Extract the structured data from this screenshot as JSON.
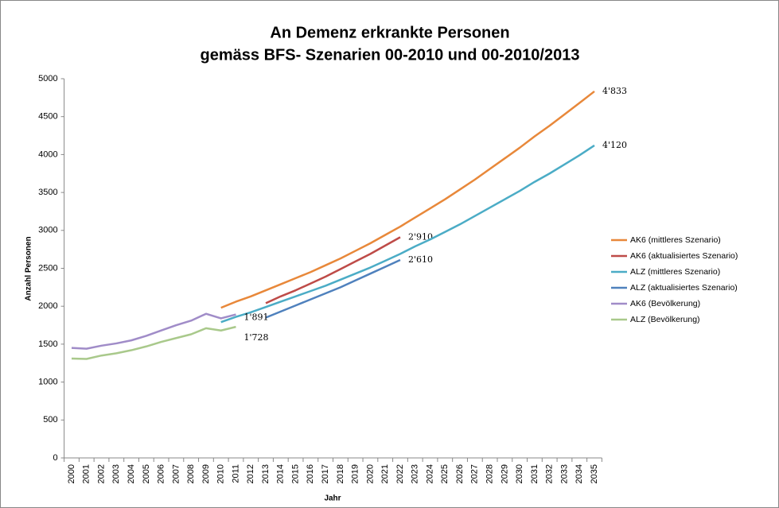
{
  "chart_data": {
    "type": "line",
    "title": "An Demenz erkrankte Personen",
    "subtitle": "gemäss BFS- Szenarien 00-2010 und 00-2010/2013",
    "x_label": "Jahr",
    "y_label": "Anzahl Personen",
    "categories": [
      "2000",
      "2001",
      "2002",
      "2003",
      "2004",
      "2005",
      "2006",
      "2007",
      "2008",
      "2009",
      "2010",
      "2011",
      "2012",
      "2013",
      "2014",
      "2015",
      "2016",
      "2017",
      "2018",
      "2019",
      "2020",
      "2021",
      "2022",
      "2023",
      "2024",
      "2025",
      "2026",
      "2027",
      "2028",
      "2029",
      "2030",
      "2031",
      "2032",
      "2033",
      "2034",
      "2035"
    ],
    "ylim": [
      0,
      5000
    ],
    "yticks": [
      0,
      500,
      1000,
      1500,
      2000,
      2500,
      3000,
      3500,
      4000,
      4500,
      5000
    ],
    "grid": false,
    "legend": "right",
    "series": [
      {
        "name": "AK6 (mittleres Szenario)",
        "color": "#e8883a",
        "values": [
          null,
          null,
          null,
          null,
          null,
          null,
          null,
          null,
          null,
          null,
          1980,
          2060,
          2130,
          2210,
          2290,
          2370,
          2450,
          2540,
          2630,
          2730,
          2830,
          2940,
          3050,
          3170,
          3290,
          3410,
          3540,
          3670,
          3810,
          3950,
          4090,
          4240,
          4380,
          4530,
          4680,
          4833
        ],
        "value_labels": [
          null,
          null,
          null,
          null,
          null,
          null,
          null,
          null,
          null,
          null,
          null,
          null,
          null,
          null,
          null,
          null,
          null,
          null,
          null,
          null,
          null,
          null,
          null,
          null,
          null,
          null,
          null,
          null,
          null,
          null,
          null,
          null,
          null,
          null,
          null,
          "4'833"
        ]
      },
      {
        "name": "AK6 (aktualisiertes Szenario)",
        "color": "#be4b48",
        "values": [
          null,
          null,
          null,
          null,
          null,
          null,
          null,
          null,
          null,
          null,
          null,
          null,
          null,
          2040,
          2130,
          2210,
          2300,
          2390,
          2490,
          2590,
          2690,
          2800,
          2910,
          null,
          null,
          null,
          null,
          null,
          null,
          null,
          null,
          null,
          null,
          null,
          null,
          null
        ],
        "value_labels": [
          null,
          null,
          null,
          null,
          null,
          null,
          null,
          null,
          null,
          null,
          null,
          null,
          null,
          null,
          null,
          null,
          null,
          null,
          null,
          null,
          null,
          null,
          "2'910",
          null,
          null,
          null,
          null,
          null,
          null,
          null,
          null,
          null,
          null,
          null,
          null,
          null
        ]
      },
      {
        "name": "ALZ (mittleres Szenario)",
        "color": "#4bacc6",
        "values": [
          null,
          null,
          null,
          null,
          null,
          null,
          null,
          null,
          null,
          null,
          1790,
          1860,
          1920,
          1990,
          2060,
          2130,
          2200,
          2270,
          2350,
          2430,
          2510,
          2600,
          2690,
          2790,
          2880,
          2980,
          3080,
          3190,
          3300,
          3410,
          3520,
          3640,
          3750,
          3870,
          3990,
          4120
        ],
        "value_labels": [
          null,
          null,
          null,
          null,
          null,
          null,
          null,
          null,
          null,
          null,
          null,
          null,
          null,
          null,
          null,
          null,
          null,
          null,
          null,
          null,
          null,
          null,
          null,
          null,
          null,
          null,
          null,
          null,
          null,
          null,
          null,
          null,
          null,
          null,
          null,
          "4'120"
        ]
      },
      {
        "name": "ALZ (aktualisiertes Szenario)",
        "color": "#4f81bd",
        "values": [
          null,
          null,
          null,
          null,
          null,
          null,
          null,
          null,
          null,
          null,
          null,
          null,
          null,
          1850,
          1930,
          2010,
          2090,
          2170,
          2250,
          2340,
          2430,
          2520,
          2610,
          null,
          null,
          null,
          null,
          null,
          null,
          null,
          null,
          null,
          null,
          null,
          null,
          null
        ],
        "value_labels": [
          null,
          null,
          null,
          null,
          null,
          null,
          null,
          null,
          null,
          null,
          null,
          null,
          null,
          null,
          null,
          null,
          null,
          null,
          null,
          null,
          null,
          null,
          "2'610",
          null,
          null,
          null,
          null,
          null,
          null,
          null,
          null,
          null,
          null,
          null,
          null,
          null
        ]
      },
      {
        "name": "AK6 (Bevölkerung)",
        "color": "#a08cc8",
        "values": [
          1450,
          1440,
          1480,
          1510,
          1550,
          1610,
          1680,
          1750,
          1810,
          1900,
          1840,
          1891,
          null,
          null,
          null,
          null,
          null,
          null,
          null,
          null,
          null,
          null,
          null,
          null,
          null,
          null,
          null,
          null,
          null,
          null,
          null,
          null,
          null,
          null,
          null,
          null
        ],
        "value_labels": [
          null,
          null,
          null,
          null,
          null,
          null,
          null,
          null,
          null,
          null,
          null,
          "1'891",
          null,
          null,
          null,
          null,
          null,
          null,
          null,
          null,
          null,
          null,
          null,
          null,
          null,
          null,
          null,
          null,
          null,
          null,
          null,
          null,
          null,
          null,
          null,
          null
        ]
      },
      {
        "name": "ALZ (Bevölkerung)",
        "color": "#a9c98b",
        "values": [
          1310,
          1305,
          1350,
          1380,
          1420,
          1470,
          1530,
          1580,
          1630,
          1710,
          1680,
          1728,
          null,
          null,
          null,
          null,
          null,
          null,
          null,
          null,
          null,
          null,
          null,
          null,
          null,
          null,
          null,
          null,
          null,
          null,
          null,
          null,
          null,
          null,
          null,
          null
        ],
        "value_labels": [
          null,
          null,
          null,
          null,
          null,
          null,
          null,
          null,
          null,
          null,
          null,
          "1'728",
          null,
          null,
          null,
          null,
          null,
          null,
          null,
          null,
          null,
          null,
          null,
          null,
          null,
          null,
          null,
          null,
          null,
          null,
          null,
          null,
          null,
          null,
          null,
          null
        ]
      }
    ]
  }
}
